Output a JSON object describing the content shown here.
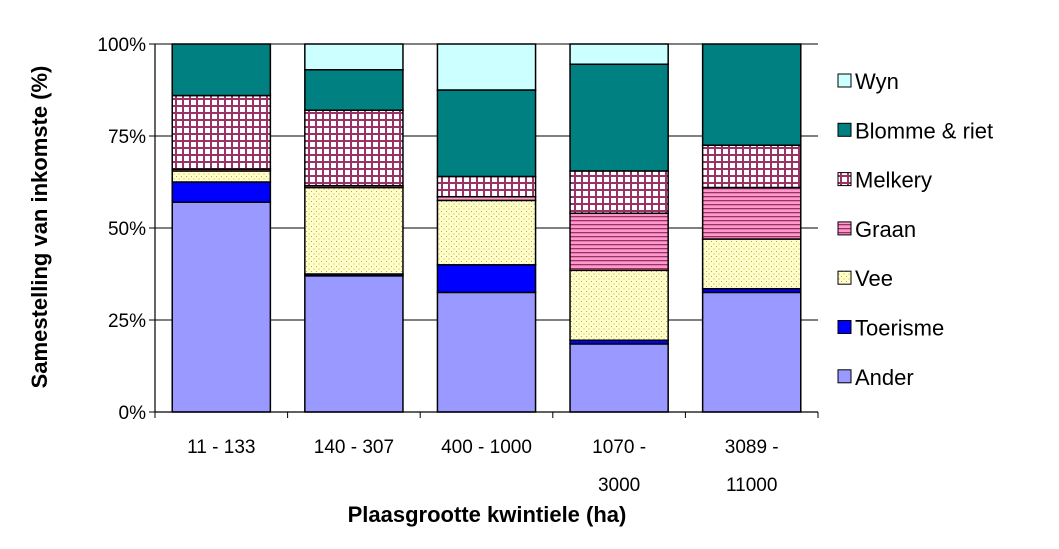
{
  "chart_data": {
    "type": "bar",
    "stacked": true,
    "percent": true,
    "ylabel": "Samestelling van inkomste (%)",
    "xlabel": "Plaasgrootte kwintiele (ha)",
    "ylim": [
      0,
      100
    ],
    "yticks": [
      "0%",
      "25%",
      "50%",
      "75%",
      "100%"
    ],
    "grid": "horizontal",
    "legend": "right",
    "categories": [
      [
        "11 - 133"
      ],
      [
        "140 - 307"
      ],
      [
        "400 - 1000"
      ],
      [
        "1070 -",
        "3000"
      ],
      [
        "3089 -",
        "11000"
      ]
    ],
    "series": [
      {
        "name": "Ander",
        "color": "#9999ff",
        "pattern": "solid",
        "values": [
          57,
          37,
          32.5,
          18.5,
          32.5
        ]
      },
      {
        "name": "Toerisme",
        "color": "#0000ff",
        "pattern": "solid",
        "values": [
          5.5,
          0.5,
          7.5,
          1,
          1
        ]
      },
      {
        "name": "Vee",
        "color": "#ffffcc",
        "pattern": "dots",
        "values": [
          3,
          23.5,
          17.5,
          19,
          13.5
        ]
      },
      {
        "name": "Graan",
        "color": "#ff99cc",
        "pattern": "hlines",
        "values": [
          0.5,
          0.5,
          1,
          15.5,
          14
        ]
      },
      {
        "name": "Melkery",
        "color": "#ff99cc",
        "pattern": "grid",
        "values": [
          20,
          20.5,
          5.5,
          11.5,
          11.5
        ]
      },
      {
        "name": "Blomme & riet",
        "color": "#008080",
        "pattern": "solid",
        "values": [
          14,
          11,
          23.5,
          29,
          27.5
        ]
      },
      {
        "name": "Wyn",
        "color": "#ccffff",
        "pattern": "solid",
        "values": [
          0,
          7,
          12.5,
          5.5,
          0
        ]
      }
    ]
  }
}
